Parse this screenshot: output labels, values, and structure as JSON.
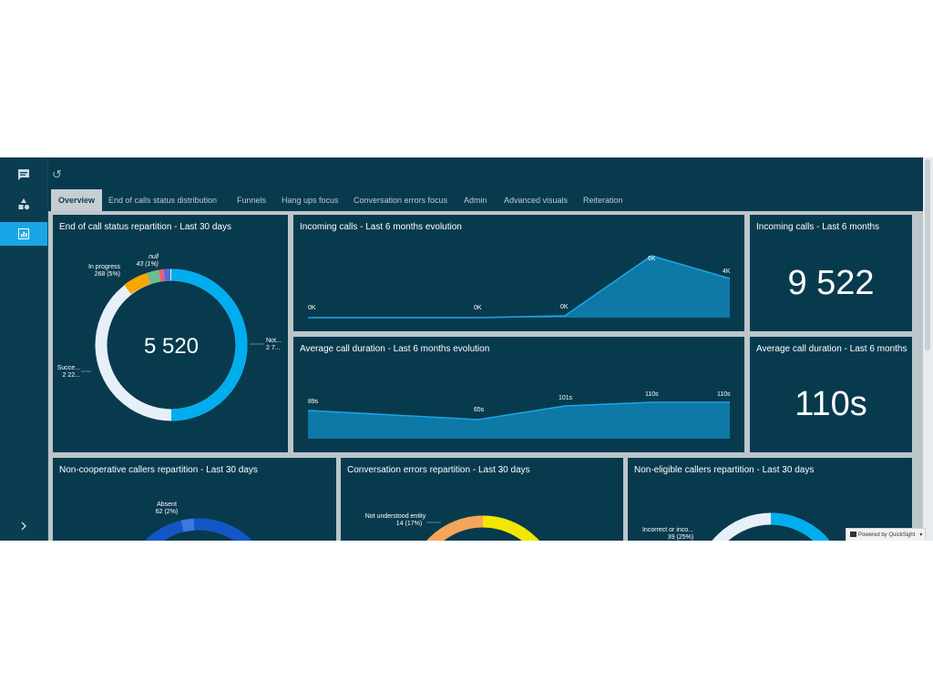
{
  "sidebar": {
    "items": [
      {
        "icon": "message-icon"
      },
      {
        "icon": "shapes-icon"
      },
      {
        "icon": "dashboard-icon"
      }
    ],
    "expand_icon": "chevron-right-icon"
  },
  "topbar": {
    "undo_icon": "undo-icon"
  },
  "tabs": [
    "Overview",
    "End of calls status distribution",
    "Funnels",
    "Hang ups focus",
    "Conversation errors focus",
    "Admin",
    "Advanced visuals",
    "Reiteration"
  ],
  "active_tab": "Overview",
  "cards": {
    "end_status": {
      "title": "End of call status repartition - Last 30 days",
      "center_value": "5 520",
      "labels": {
        "null_name": "null",
        "null_value": "43 (1%)",
        "in_progress_name": "In progress",
        "in_progress_value": "268 (5%)",
        "success_name": "Succe...",
        "success_value": "2 22...",
        "not_name": "Not...",
        "not_value": "2 7..."
      }
    },
    "incoming_evolution": {
      "title": "Incoming calls - Last 6 months evolution",
      "points": [
        "0K",
        "0K",
        "0K",
        "6K",
        "4K"
      ]
    },
    "incoming_kpi": {
      "title": "Incoming calls - Last 6 months",
      "value": "9 522"
    },
    "duration_evolution": {
      "title": "Average call duration - Last 6 months evolution",
      "points": [
        "89s",
        "65s",
        "101s",
        "110s",
        "110s"
      ]
    },
    "duration_kpi": {
      "title": "Average call duration - Last 6 months",
      "value": "110s"
    },
    "non_coop": {
      "title": "Non-cooperative callers repartition - Last 30 days",
      "label_name": "Absent",
      "label_value": "62 (2%)"
    },
    "conv_errors": {
      "title": "Conversation errors repartition - Last 30 days",
      "label_name": "Not understood entity",
      "label_value": "14 (17%)"
    },
    "non_eligible": {
      "title": "Non-eligible callers repartition - Last 30 days",
      "label_name": "Incorrect or inco...",
      "label_value": "39 (25%)"
    }
  },
  "footer": {
    "powered_by": "Powered by QuickSight"
  },
  "colors": {
    "bg": "#083a4e",
    "accent": "#1aa6e6",
    "donut_blue": "#00aeef",
    "donut_light": "#e7f0f8",
    "donut_orange": "#f7a600",
    "donut_green": "#6bbd8a",
    "donut_red": "#e8646e",
    "area": "#0e79a6"
  }
}
